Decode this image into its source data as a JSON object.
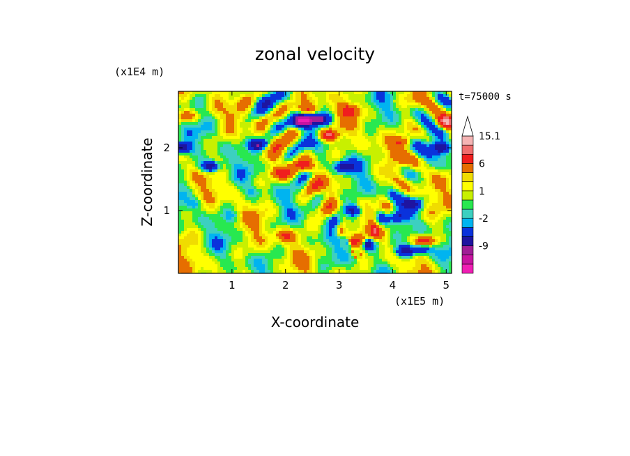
{
  "chart_data": {
    "type": "heatmap",
    "title": "zonal velocity",
    "xlabel": "X-coordinate",
    "ylabel": "Z-coordinate",
    "x_unit": "(x1E5 m)",
    "y_unit": "(x1E4 m)",
    "annotation": "t=75000 s",
    "x_ticks": [
      1,
      2,
      3,
      4,
      5
    ],
    "y_ticks": [
      1,
      2
    ],
    "xlim": [
      0,
      5.1
    ],
    "ylim": [
      0,
      2.9
    ],
    "colorbar": {
      "levels": [
        -15,
        -12,
        -9,
        -6,
        -3,
        -2,
        -1,
        0,
        1,
        2,
        3,
        6,
        9,
        12,
        15.1
      ],
      "tick_labels": [
        "15.1",
        "6",
        "1",
        "-2",
        "-9"
      ],
      "tick_values": [
        15.1,
        6,
        1,
        -2,
        -9
      ],
      "colors": [
        "#f01eb4",
        "#c814a0",
        "#a01e96",
        "#1e14a0",
        "#0a32dc",
        "#00b4f0",
        "#3cd0c0",
        "#28e850",
        "#c8f000",
        "#ffff00",
        "#f0dc00",
        "#e66e00",
        "#f01e1e",
        "#f06e6e",
        "#f5b4b4",
        "#ffffff"
      ]
    },
    "field": {
      "mean": 0.5,
      "structures": [
        {
          "x": 0.05,
          "z": 2.0,
          "amp": -10
        },
        {
          "x": 0.6,
          "z": 1.7,
          "amp": -10
        },
        {
          "x": 1.5,
          "z": 2.05,
          "amp": -9
        },
        {
          "x": 2.3,
          "z": 2.4,
          "amp": -6
        },
        {
          "x": 2.4,
          "z": 2.6,
          "amp": 6
        },
        {
          "x": 2.4,
          "z": 1.7,
          "amp": 6
        },
        {
          "x": 1.9,
          "z": 1.6,
          "amp": 6
        },
        {
          "x": 0.15,
          "z": 2.5,
          "amp": 6
        },
        {
          "x": 2.35,
          "z": 2.45,
          "amp": -10
        },
        {
          "x": 2.65,
          "z": 2.45,
          "amp": -10
        },
        {
          "x": 2.8,
          "z": 2.2,
          "amp": 9
        },
        {
          "x": 3.1,
          "z": 1.7,
          "amp": -8
        },
        {
          "x": 3.25,
          "z": 1.0,
          "amp": -8
        },
        {
          "x": 3.3,
          "z": 0.5,
          "amp": 6
        },
        {
          "x": 3.55,
          "z": 0.45,
          "amp": -6
        },
        {
          "x": 4.1,
          "z": 0.9,
          "amp": -6
        },
        {
          "x": 4.4,
          "z": 1.1,
          "amp": -6
        },
        {
          "x": 4.9,
          "z": 2.0,
          "amp": -10
        },
        {
          "x": 5.0,
          "z": 2.4,
          "amp": 9
        },
        {
          "x": 4.2,
          "z": 2.1,
          "amp": 6
        },
        {
          "x": 3.2,
          "z": 2.6,
          "amp": 6
        },
        {
          "x": 4.25,
          "z": 0.35,
          "amp": -10
        },
        {
          "x": 4.55,
          "z": 0.4,
          "amp": -9
        },
        {
          "x": 4.6,
          "z": 0.5,
          "amp": 9
        },
        {
          "x": 2.0,
          "z": 0.6,
          "amp": 5
        },
        {
          "x": 1.0,
          "z": 0.9,
          "amp": -2
        },
        {
          "x": 0.3,
          "z": 1.1,
          "amp": -3
        },
        {
          "x": 1.4,
          "z": 1.3,
          "amp": -2
        }
      ]
    }
  }
}
